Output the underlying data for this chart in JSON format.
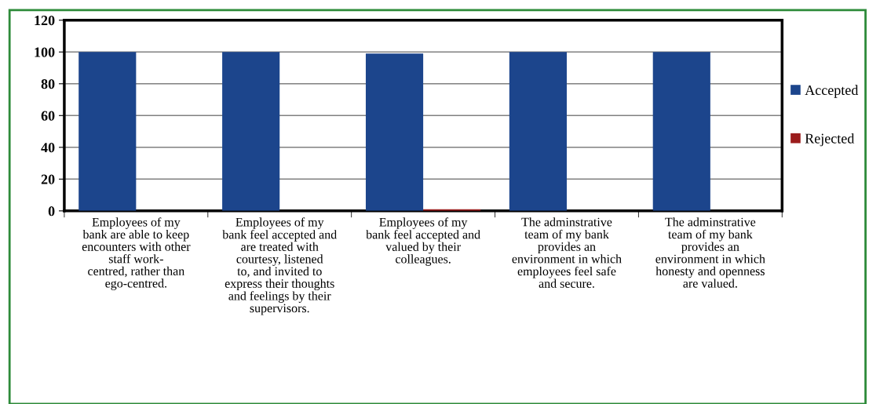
{
  "chart_data": {
    "type": "bar",
    "categories": [
      "Employees of my\nbank are able to keep\nencounters with other\nstaff work-\ncentred, rather than\nego-centred.",
      "Employees of my\nbank feel accepted and\nare treated with\ncourtesy, listened\nto, and invited to\nexpress their thoughts\nand feelings by their\nsupervisors.",
      "Employees of my\nbank feel accepted and\nvalued by their\ncolleagues.",
      "The adminstrative\nteam of my bank\nprovides an\nenvironment in which\nemployees feel safe\nand secure.",
      "The adminstrative\nteam of my bank\nprovides an\nenvironment in which\nhonesty and openness\nare valued."
    ],
    "series": [
      {
        "name": "Accepted",
        "color": "#1c458c",
        "values": [
          100,
          100,
          99,
          100,
          100
        ]
      },
      {
        "name": "Rejected",
        "color": "#9b1c1c",
        "values": [
          0,
          0,
          1,
          0,
          0
        ]
      }
    ],
    "ylim": [
      0,
      120
    ],
    "yticks": [
      0,
      20,
      40,
      60,
      80,
      100,
      120
    ],
    "grid": "y",
    "legend": "right"
  }
}
